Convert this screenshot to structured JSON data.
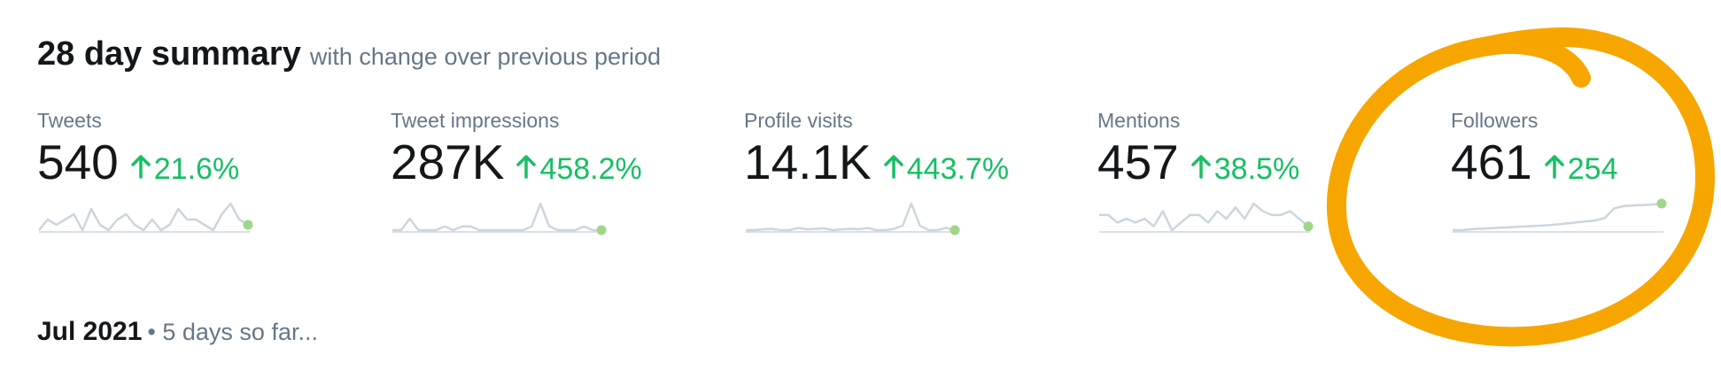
{
  "header": {
    "title": "28 day summary",
    "subtitle": "with change over previous period"
  },
  "metrics": [
    {
      "label": "Tweets",
      "value": "540",
      "change": "21.6%",
      "sparkline": [
        2,
        4,
        3,
        4,
        5,
        2,
        6,
        3,
        2,
        4,
        5,
        3,
        2,
        4,
        2,
        3,
        6,
        4,
        4,
        3,
        2,
        5,
        7,
        4,
        3
      ]
    },
    {
      "label": "Tweet impressions",
      "value": "287K",
      "change": "458.2%",
      "sparkline": [
        1,
        1,
        4,
        1,
        1,
        1,
        2,
        1,
        2,
        2,
        1,
        1,
        1,
        1,
        1,
        1,
        2,
        8,
        2,
        1,
        1,
        1,
        2,
        1,
        1
      ]
    },
    {
      "label": "Profile visits",
      "value": "14.1K",
      "change": "443.7%",
      "sparkline": [
        1,
        1,
        1.2,
        1.3,
        1,
        1,
        1.5,
        1.2,
        1.3,
        1.4,
        1,
        1.2,
        1.3,
        1.2,
        1.5,
        1,
        1,
        1.3,
        2,
        7,
        2,
        1,
        1,
        1.5,
        1
      ]
    },
    {
      "label": "Mentions",
      "value": "457",
      "change": "38.5%",
      "sparkline": [
        5,
        5,
        3,
        4,
        3,
        4,
        2,
        6,
        1,
        3,
        5,
        5,
        3,
        6,
        4,
        7,
        4,
        8,
        6,
        5,
        5,
        6,
        4,
        2
      ]
    },
    {
      "label": "Followers",
      "value": "461",
      "change": "254",
      "sparkline": [
        1,
        1,
        1.2,
        1.3,
        1.4,
        1.5,
        1.6,
        1.7,
        1.8,
        1.9,
        2,
        2.2,
        2.4,
        2.6,
        2.8,
        3,
        3.5,
        5.5,
        6,
        6.1,
        6.2,
        6.3,
        6.5
      ]
    }
  ],
  "month": {
    "title": "Jul 2021",
    "note": "• 5 days so far..."
  }
}
